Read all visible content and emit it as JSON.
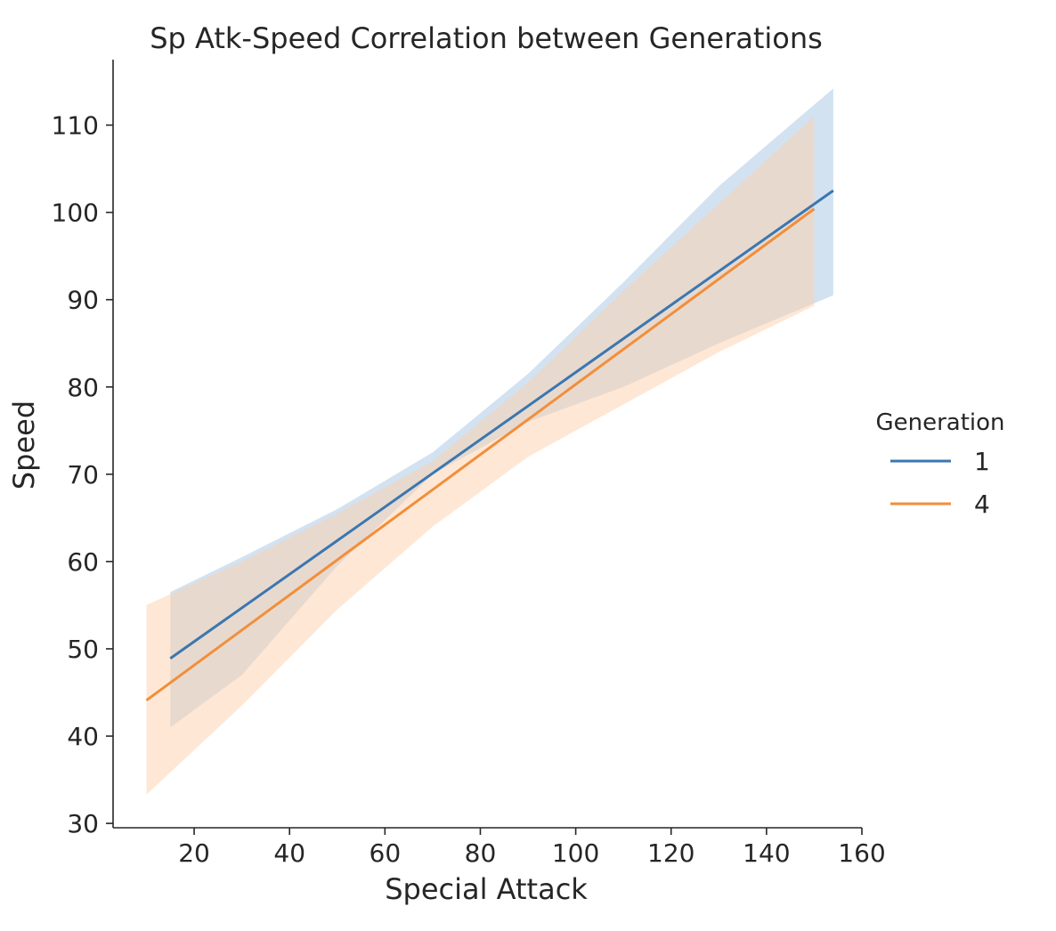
{
  "chart_data": {
    "type": "line",
    "title": "Sp Atk-Speed Correlation between Generations",
    "xlabel": "Special Attack",
    "ylabel": "Speed",
    "xlim": [
      3,
      160
    ],
    "ylim": [
      29.5,
      117.5
    ],
    "xticks": [
      20,
      40,
      60,
      80,
      100,
      120,
      140,
      160
    ],
    "yticks": [
      30,
      40,
      50,
      60,
      70,
      80,
      90,
      100,
      110
    ],
    "grid": false,
    "legend": {
      "title": "Generation",
      "placement": "right"
    },
    "series": [
      {
        "name": "1",
        "color": "#3a77b0",
        "band_color": "#a7c6e4",
        "line": [
          [
            15,
            48.9
          ],
          [
            154,
            102.5
          ]
        ],
        "ci_upper": [
          [
            15,
            56.5
          ],
          [
            30,
            60.5
          ],
          [
            50,
            66
          ],
          [
            70,
            72.5
          ],
          [
            90,
            81.5
          ],
          [
            110,
            92
          ],
          [
            130,
            103
          ],
          [
            154,
            114.2
          ]
        ],
        "ci_lower": [
          [
            15,
            41
          ],
          [
            30,
            47
          ],
          [
            50,
            59.5
          ],
          [
            70,
            70
          ],
          [
            90,
            76
          ],
          [
            110,
            80
          ],
          [
            130,
            85
          ],
          [
            154,
            90.5
          ]
        ]
      },
      {
        "name": "4",
        "color": "#f28e3a",
        "band_color": "#fdd0ac",
        "line": [
          [
            10,
            44.1
          ],
          [
            150,
            100.4
          ]
        ],
        "ci_upper": [
          [
            10,
            55
          ],
          [
            30,
            60
          ],
          [
            50,
            65.5
          ],
          [
            70,
            71.5
          ],
          [
            90,
            80.5
          ],
          [
            110,
            91
          ],
          [
            130,
            101
          ],
          [
            150,
            111
          ]
        ],
        "ci_lower": [
          [
            10,
            33.3
          ],
          [
            30,
            43.5
          ],
          [
            50,
            54.5
          ],
          [
            70,
            64
          ],
          [
            90,
            72
          ],
          [
            110,
            78
          ],
          [
            130,
            84
          ],
          [
            150,
            89.3
          ]
        ]
      }
    ]
  }
}
